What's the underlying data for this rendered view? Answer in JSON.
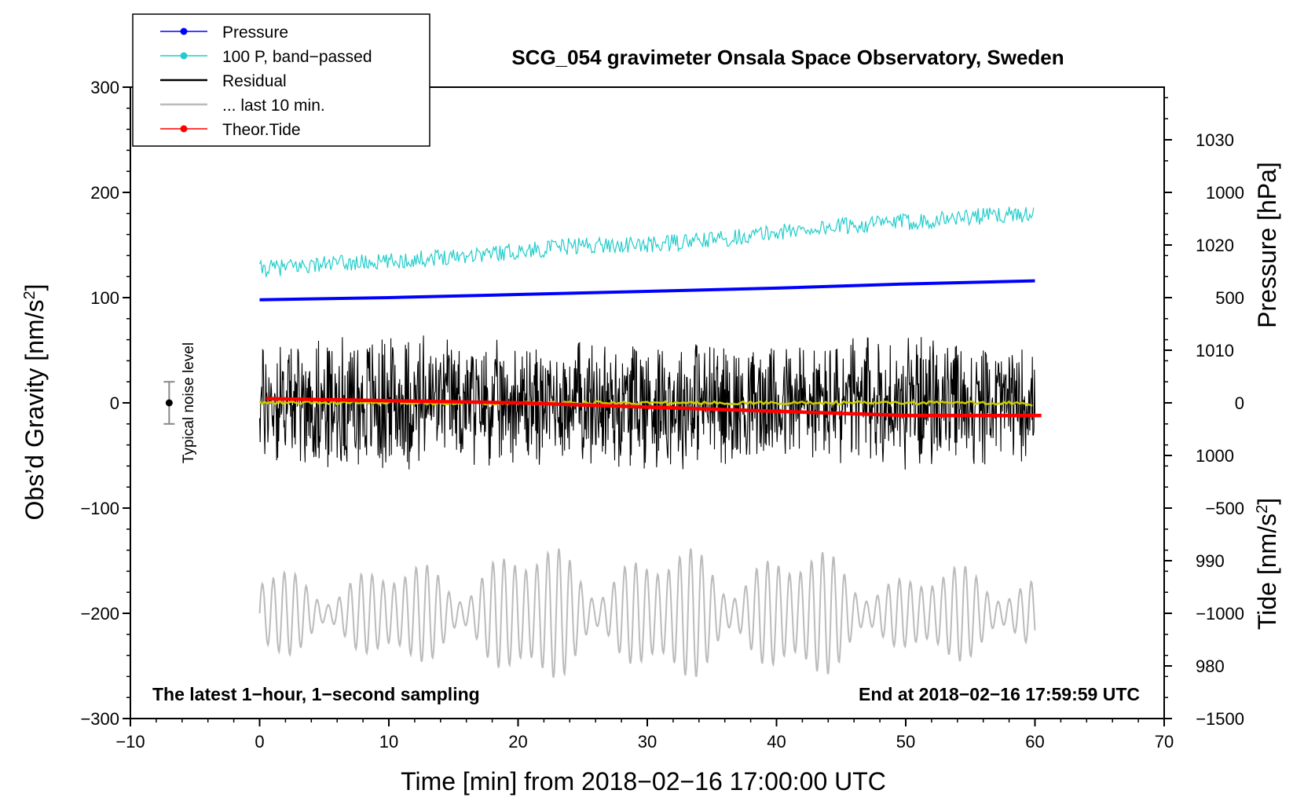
{
  "chart_data": {
    "type": "line",
    "title": "SCG_054 gravimeter Onsala Space Observatory, Sweden",
    "xlabel": "Time [min] from 2018−02−16 17:00:00 UTC",
    "ylabel_left": "Obs’d Gravity [nm/s",
    "ylabel_left_sup": "2",
    "ylabel_left_close": "]",
    "ylabel_right_pressure": "Pressure [hPa]",
    "ylabel_right_tide": "Tide [nm/s",
    "ylabel_right_tide_sup": "2",
    "ylabel_right_tide_close": "]",
    "xlim": [
      -10,
      70
    ],
    "ylim_left": [
      -300,
      300
    ],
    "pressure_ylim": [
      975,
      1035
    ],
    "tide_ylim": [
      -1500,
      1500
    ],
    "x_ticks": [
      -10,
      0,
      10,
      20,
      30,
      40,
      50,
      60,
      70
    ],
    "x_tick_labels": [
      "−10",
      "0",
      "10",
      "20",
      "30",
      "40",
      "50",
      "60",
      "70"
    ],
    "y_left_ticks": [
      300,
      200,
      100,
      0,
      -100,
      -200,
      -300
    ],
    "y_left_tick_labels": [
      "300",
      "200",
      "100",
      "0",
      "−100",
      "−200",
      "−300"
    ],
    "pressure_ticks": [
      1030,
      1020,
      1010,
      1000,
      990,
      980
    ],
    "pressure_tick_labels": [
      "1030",
      "1020",
      "1010",
      "1000",
      "990",
      "980"
    ],
    "tide_ticks": [
      1000,
      500,
      0,
      -500,
      -1000,
      -1500
    ],
    "tide_tick_labels": [
      "1000",
      "500",
      "0",
      "−500",
      "−1000",
      "−1500"
    ],
    "legend": [
      {
        "label": "Pressure",
        "color": "#0000ff",
        "marker": true
      },
      {
        "label": "100 P, band−passed",
        "color": "#22cccc",
        "marker": true
      },
      {
        "label": "Residual",
        "color": "#000000",
        "marker": false
      },
      {
        "label": "... last 10 min.",
        "color": "#bbbbbb",
        "marker": false
      },
      {
        "label": "Theor.Tide",
        "color": "#ff0000",
        "marker": true
      }
    ],
    "legend_position": "top-left",
    "annotation_left": "The latest 1−hour, 1−second sampling",
    "annotation_right": "End at 2018−02−16 17:59:59 UTC",
    "noise_label": "Typical noise level",
    "noise_level": {
      "x": -7,
      "center": 0,
      "half_range": 20
    },
    "series": [
      {
        "name": "Pressure",
        "axis": "pressure",
        "color": "#0000ff",
        "x": [
          0,
          10,
          20,
          30,
          40,
          50,
          60
        ],
        "y": [
          1014.8,
          1015.0,
          1015.3,
          1015.6,
          1015.9,
          1016.3,
          1016.6
        ]
      },
      {
        "name": "100 P, band−passed",
        "axis": "left",
        "color": "#22cccc",
        "x": [
          0,
          5,
          10,
          15,
          20,
          25,
          30,
          35,
          40,
          45,
          50,
          55,
          60
        ],
        "y": [
          127,
          132,
          134,
          140,
          144,
          150,
          150,
          155,
          162,
          168,
          172,
          177,
          180
        ],
        "noise_amp": 8
      },
      {
        "name": "Residual",
        "axis": "left",
        "color": "#000000",
        "x": [
          0,
          10,
          20,
          30,
          40,
          50,
          60
        ],
        "amplitude": [
          60,
          70,
          60,
          65,
          60,
          65,
          55
        ]
      },
      {
        "name": "... last 10 min.",
        "axis": "left",
        "color": "#bbbbbb",
        "x": [
          0,
          10,
          20,
          30,
          40,
          50,
          60
        ],
        "offset": -200,
        "amplitude": [
          40,
          40,
          60,
          55,
          60,
          40,
          40
        ]
      },
      {
        "name": "Theor.Tide",
        "axis": "tide",
        "color": "#ff0000",
        "x": [
          0.5,
          10,
          20,
          30,
          40,
          50,
          60.5
        ],
        "y": [
          20,
          10,
          0,
          -20,
          -40,
          -60,
          -60
        ]
      },
      {
        "name": "Smoothed residual",
        "axis": "left",
        "color": "#cccc00",
        "x": [
          0,
          30,
          59,
          60
        ],
        "y": [
          0,
          0,
          0,
          -5
        ]
      }
    ]
  }
}
